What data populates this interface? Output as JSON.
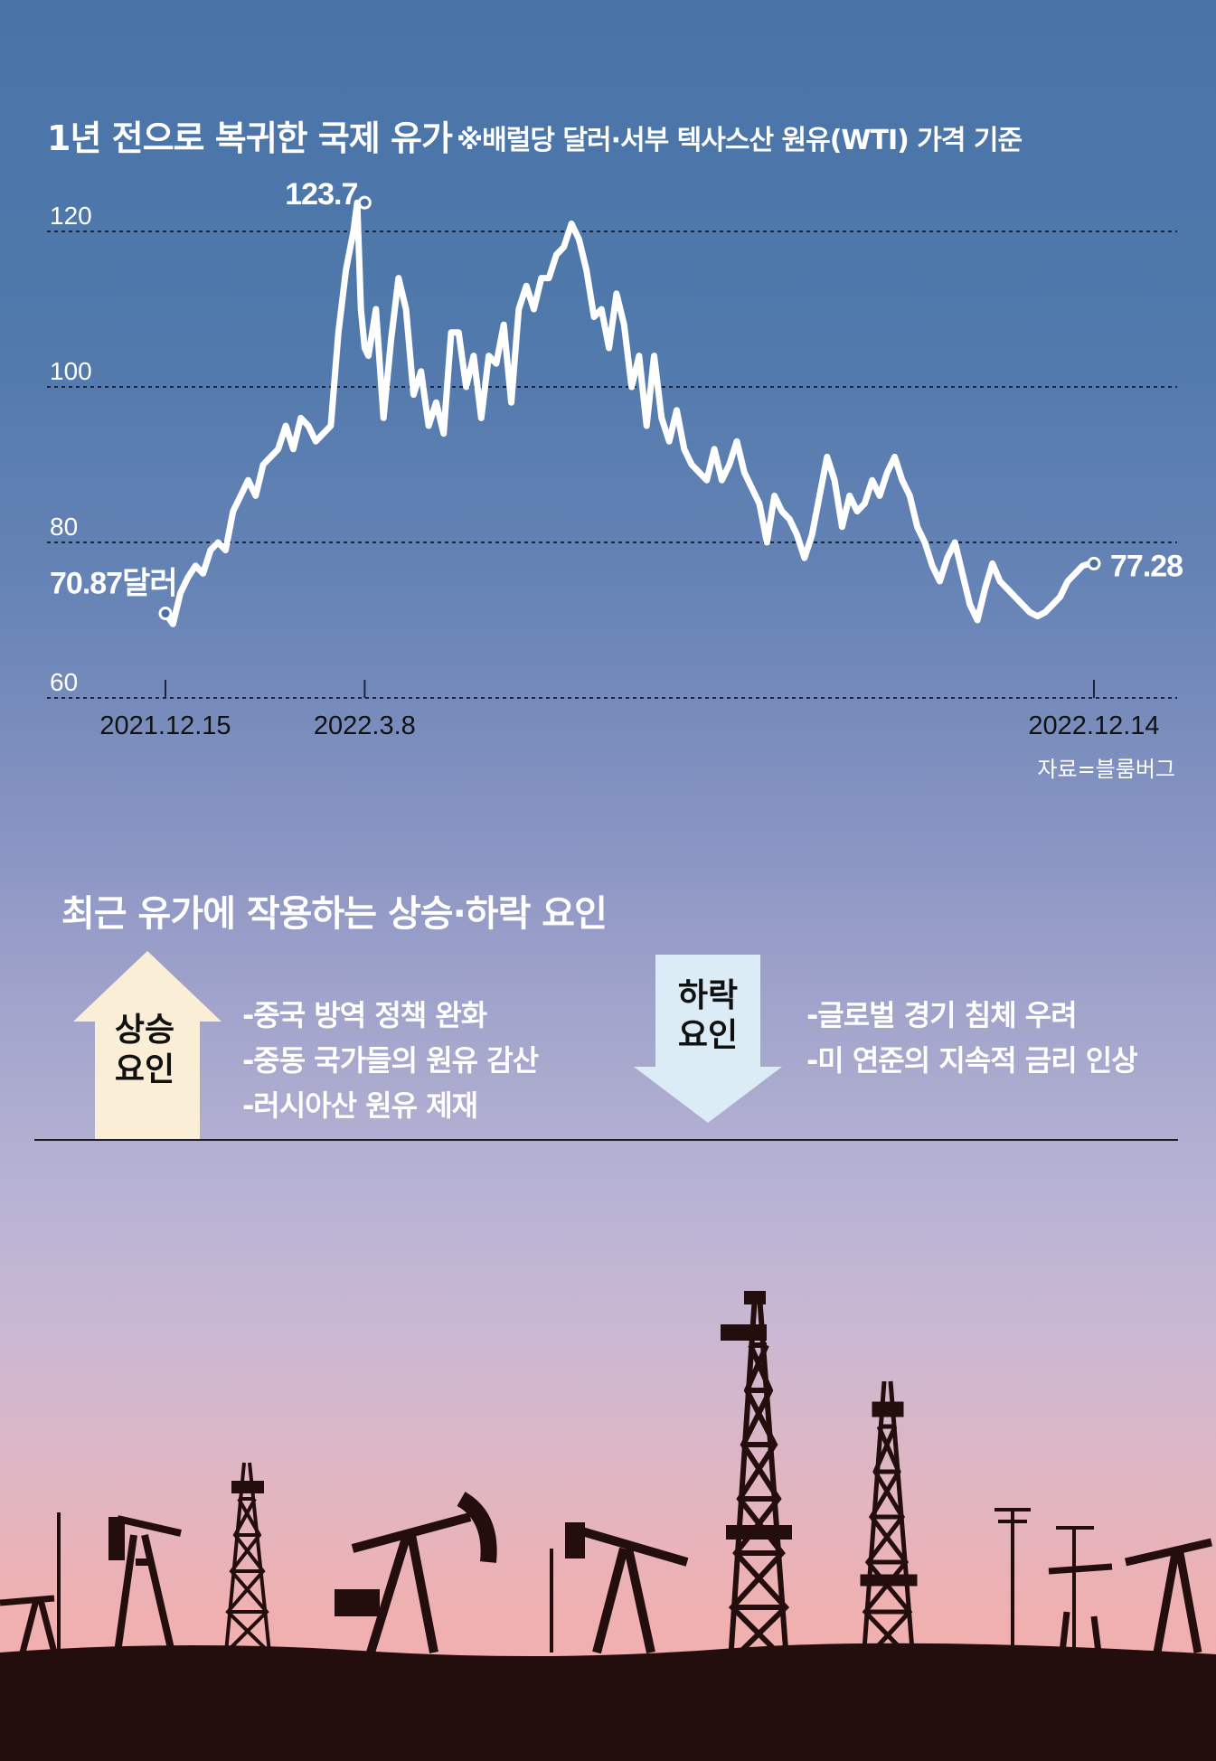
{
  "header": {
    "title": "1년 전으로 복귀한 국제 유가",
    "subtitle": "※배럴당 달러·서부 텍사스산 원유(WTI) 가격 기준",
    "source": "자료=블룸버그"
  },
  "colors": {
    "line": "#ffffff",
    "up_box": "#fbeed6",
    "down_box": "#dcecf7",
    "silhouette": "#240d0d"
  },
  "chart_data": {
    "type": "line",
    "title": "1년 전으로 복귀한 국제 유가",
    "ylim": [
      60,
      124
    ],
    "y_ticks": [
      "60",
      "80",
      "100",
      "120"
    ],
    "x_tick_labels": [
      "2021.12.15",
      "2022.3.8",
      "2022.12.14"
    ],
    "grid": true,
    "annotations": [
      {
        "label": "70.87달러",
        "x": 0,
        "y": 70.87
      },
      {
        "label": "123.7",
        "x": 53,
        "y": 123.7
      },
      {
        "label": "77.28",
        "x": 247,
        "y": 77.28
      }
    ],
    "series": [
      {
        "x": [
          0,
          2,
          4,
          6,
          8,
          10,
          12,
          14,
          16,
          18,
          20,
          22,
          24,
          26,
          28,
          30,
          32,
          34,
          36,
          38,
          40,
          42,
          44,
          46,
          48,
          50,
          51,
          52,
          53,
          54,
          56,
          58,
          60,
          62,
          64,
          66,
          68,
          70,
          72,
          74,
          76,
          78,
          80,
          82,
          84,
          86,
          88,
          90,
          92,
          94,
          96,
          98,
          100,
          102,
          104,
          106,
          108,
          110,
          112,
          114,
          116,
          118,
          120,
          122,
          124,
          126,
          128,
          130,
          132,
          134,
          136,
          138,
          140,
          142,
          144,
          146,
          148,
          150,
          152,
          154,
          156,
          158,
          160,
          162,
          164,
          166,
          168,
          170,
          172,
          174,
          176,
          178,
          180,
          182,
          184,
          186,
          188,
          190,
          192,
          194,
          196,
          198,
          200,
          202,
          204,
          206,
          208,
          210,
          212,
          214,
          216,
          218,
          220,
          222,
          224,
          226,
          228,
          230,
          232,
          234,
          236,
          238,
          240,
          242,
          244,
          246,
          247
        ],
        "values": [
          70.87,
          69.5,
          73.5,
          75.5,
          77.0,
          76.0,
          79.0,
          80.0,
          79.0,
          84.0,
          86.0,
          88.0,
          86.0,
          90.0,
          91.0,
          92.0,
          95.0,
          92.0,
          96.0,
          95.0,
          93.0,
          94.0,
          95.0,
          107.0,
          115.0,
          120.0,
          123.7,
          110.0,
          105.0,
          104.0,
          110.0,
          96.0,
          106.0,
          114.0,
          110.0,
          99.0,
          102.0,
          95.0,
          98.0,
          94.0,
          107.0,
          107.0,
          100.0,
          104.0,
          96.0,
          104.0,
          103.0,
          108.0,
          98.0,
          110.0,
          113.0,
          110.0,
          114.0,
          114.0,
          117.0,
          118.0,
          121.0,
          119.0,
          115.0,
          109.0,
          110.0,
          105.0,
          112.0,
          108.0,
          100.0,
          104.0,
          95.0,
          104.0,
          96.0,
          93.0,
          97.0,
          92.0,
          90.0,
          89.0,
          88.0,
          92.0,
          88.0,
          90.0,
          93.0,
          89.0,
          87.0,
          85.0,
          80.0,
          86.0,
          84.0,
          83.0,
          81.0,
          78.0,
          81.0,
          86.0,
          91.0,
          88.0,
          82.0,
          86.0,
          84.0,
          85.0,
          88.0,
          86.0,
          89.0,
          91.0,
          88.0,
          86.0,
          82.0,
          80.0,
          77.0,
          75.0,
          78.0,
          80.0,
          76.0,
          72.0,
          70.0,
          74.0,
          77.28,
          75.0,
          74.0,
          73.0,
          72.0,
          71.0,
          70.5,
          71.0,
          72.0,
          73.0,
          75.0,
          76.0,
          77.0,
          77.28,
          77.28
        ]
      }
    ]
  },
  "factors": {
    "heading": "최근 유가에 작용하는 상승·하락 요인",
    "up": {
      "label_line1": "상승",
      "label_line2": "요인",
      "items": [
        "-중국 방역 정책 완화",
        "-중동 국가들의 원유 감산",
        "-러시아산 원유 제재"
      ]
    },
    "down": {
      "label_line1": "하락",
      "label_line2": "요인",
      "items": [
        "-글로벌 경기 침체 우려",
        "-미 연준의 지속적 금리 인상"
      ]
    }
  }
}
